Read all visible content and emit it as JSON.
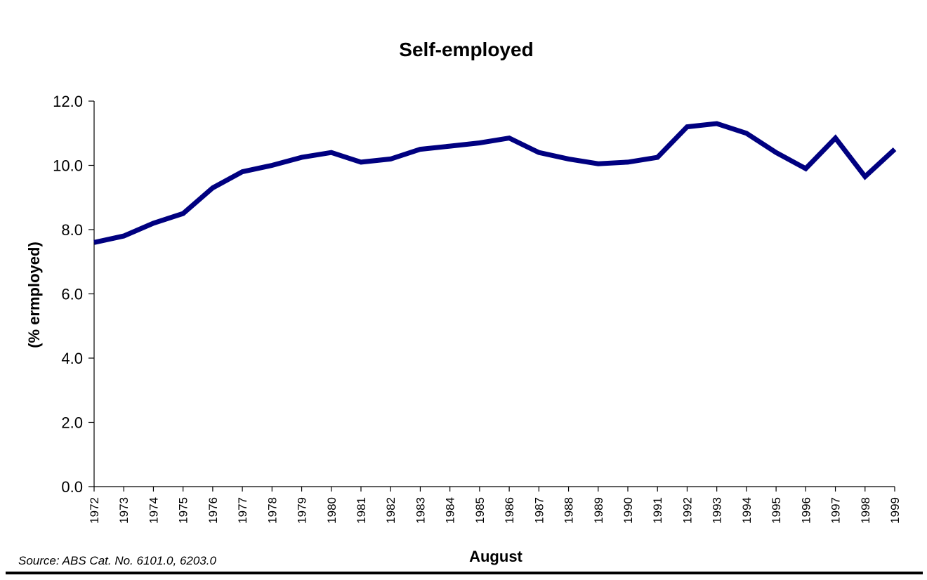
{
  "chart_data": {
    "type": "line",
    "title": "Self-employed",
    "ylabel": "(% ermployed)",
    "xlabel": "August",
    "ylim": [
      0,
      12
    ],
    "yticks": [
      "0.0",
      "2.0",
      "4.0",
      "6.0",
      "8.0",
      "10.0",
      "12.0"
    ],
    "x": [
      "1972",
      "1973",
      "1974",
      "1975",
      "1976",
      "1977",
      "1978",
      "1979",
      "1980",
      "1981",
      "1982",
      "1983",
      "1984",
      "1985",
      "1986",
      "1987",
      "1988",
      "1989",
      "1990",
      "1991",
      "1992",
      "1993",
      "1994",
      "1995",
      "1996",
      "1997",
      "1998",
      "1999"
    ],
    "series": [
      {
        "values": [
          7.6,
          7.8,
          8.2,
          8.5,
          9.3,
          9.8,
          10.0,
          10.25,
          10.4,
          10.1,
          10.2,
          10.5,
          10.6,
          10.7,
          10.85,
          10.4,
          10.2,
          10.05,
          10.1,
          10.25,
          11.2,
          11.3,
          11.0,
          10.4,
          9.9,
          10.85,
          9.65,
          10.5
        ],
        "color": "#000080"
      }
    ],
    "grid": false,
    "legend": "none"
  },
  "source": "Source: ABS Cat. No. 6101.0, 6203.0"
}
